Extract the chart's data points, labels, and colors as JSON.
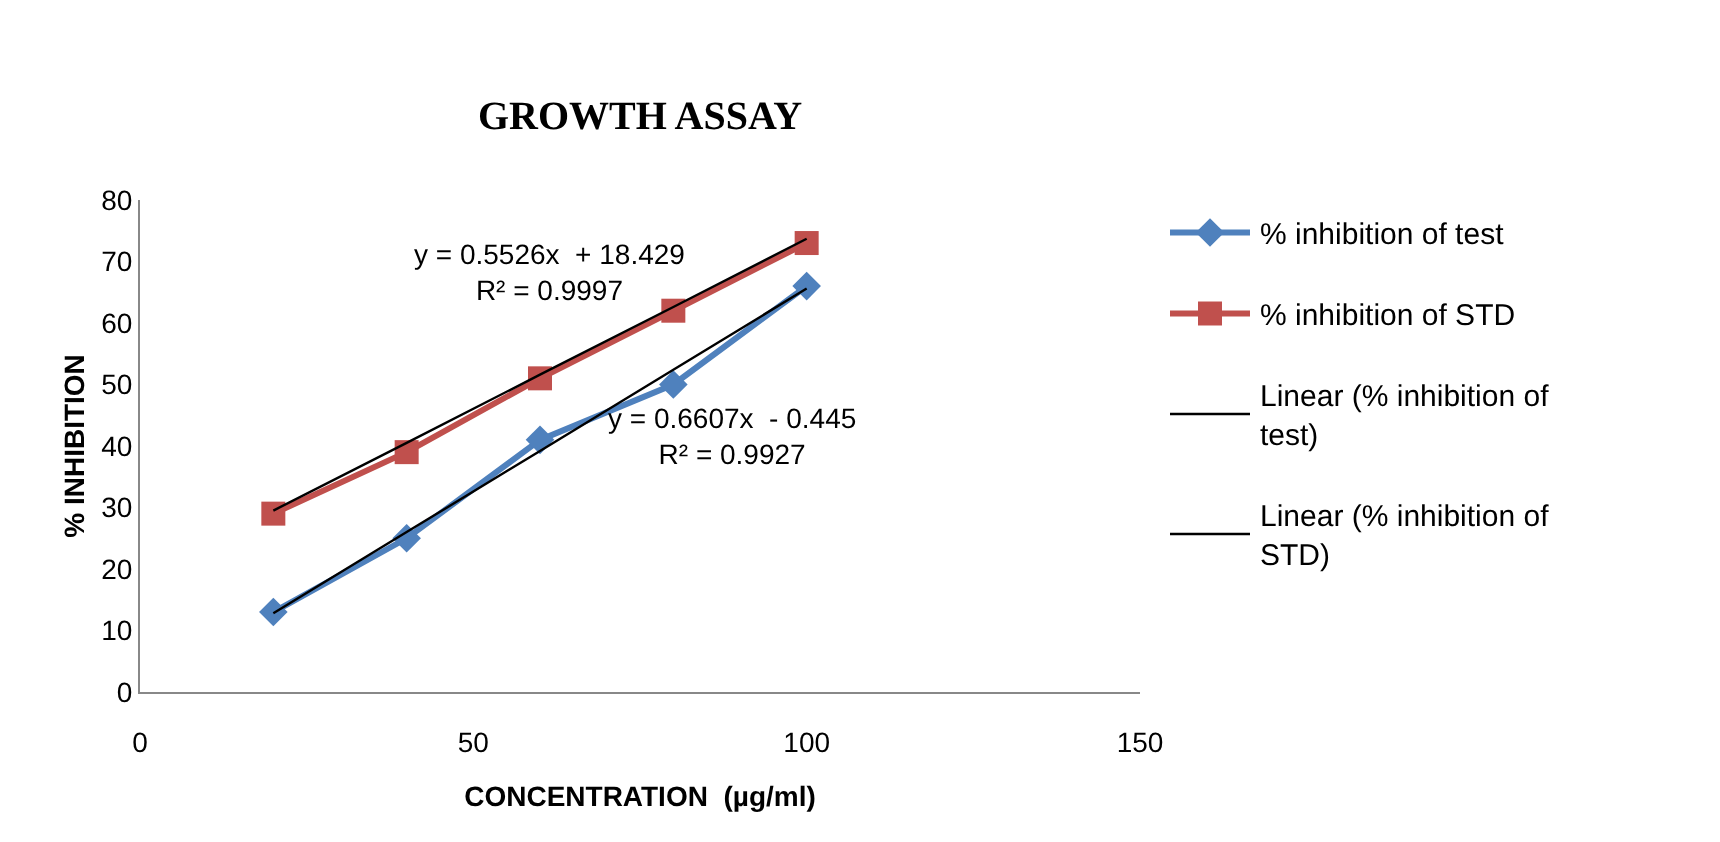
{
  "chart_data": {
    "type": "line",
    "title": "GROWTH ASSAY",
    "xlabel": "CONCENTRATION  (µg/ml)",
    "ylabel": "% INHIBITION",
    "x": [
      20,
      40,
      60,
      80,
      100
    ],
    "series": [
      {
        "name": "% inhibition of test",
        "color": "#4f81bd",
        "marker": "diamond",
        "values": [
          13,
          25,
          41,
          50,
          66
        ]
      },
      {
        "name": "% inhibition of STD",
        "color": "#c0504d",
        "marker": "square",
        "values": [
          29,
          39,
          51,
          62,
          73
        ]
      },
      {
        "name": "Linear (% inhibition of test)",
        "color": "#000000",
        "marker": "none",
        "values": [
          12.8,
          26.0,
          39.2,
          52.4,
          65.6
        ]
      },
      {
        "name": "Linear (% inhibition of STD)",
        "color": "#000000",
        "marker": "none",
        "values": [
          29.5,
          40.5,
          51.6,
          62.6,
          73.7
        ]
      }
    ],
    "annotations": [
      "y = 0.5526x  + 18.429\nR² = 0.9997",
      "y = 0.6607x  - 0.445\nR² = 0.9927"
    ],
    "xlim": [
      0,
      150
    ],
    "xticks": [
      0,
      50,
      100,
      150
    ],
    "ylim": [
      0,
      80
    ],
    "yticks": [
      0,
      10,
      20,
      30,
      40,
      50,
      60,
      70,
      80
    ],
    "legend": "right"
  }
}
